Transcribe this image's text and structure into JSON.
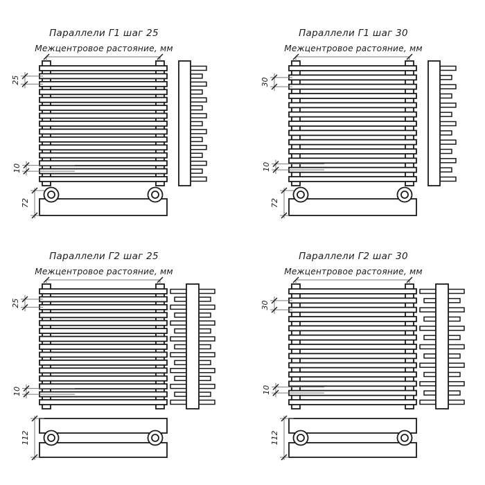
{
  "page": {
    "background": "#ffffff"
  },
  "drawing": {
    "line_color": "#1a1a1a",
    "dim_color": "#777777",
    "text_color": "#1c1c1c"
  },
  "diagrams": [
    {
      "title": "Параллели Г1 шаг 25",
      "subtitle": "Межцентровое растояние, мм",
      "model": "Г1",
      "pitch_mm": "25",
      "gap_mm": "10",
      "depth_mm": "72",
      "tube_rows": 1,
      "tube_count": 15
    },
    {
      "title": "Параллели Г1 шаг 30",
      "subtitle": "Межцентровое растояние, мм",
      "model": "Г1",
      "pitch_mm": "30",
      "gap_mm": "10",
      "depth_mm": "72",
      "tube_rows": 1,
      "tube_count": 13
    },
    {
      "title": "Параллели Г2 шаг 25",
      "subtitle": "Межцентровое растояние, мм",
      "model": "Г2",
      "pitch_mm": "25",
      "gap_mm": "10",
      "depth_mm": "112",
      "tube_rows": 2,
      "tube_count": 15
    },
    {
      "title": "Параллели Г2 шаг 30",
      "subtitle": "Межцентровое растояние, мм",
      "model": "Г2",
      "pitch_mm": "30",
      "gap_mm": "10",
      "depth_mm": "112",
      "tube_rows": 2,
      "tube_count": 13
    }
  ]
}
